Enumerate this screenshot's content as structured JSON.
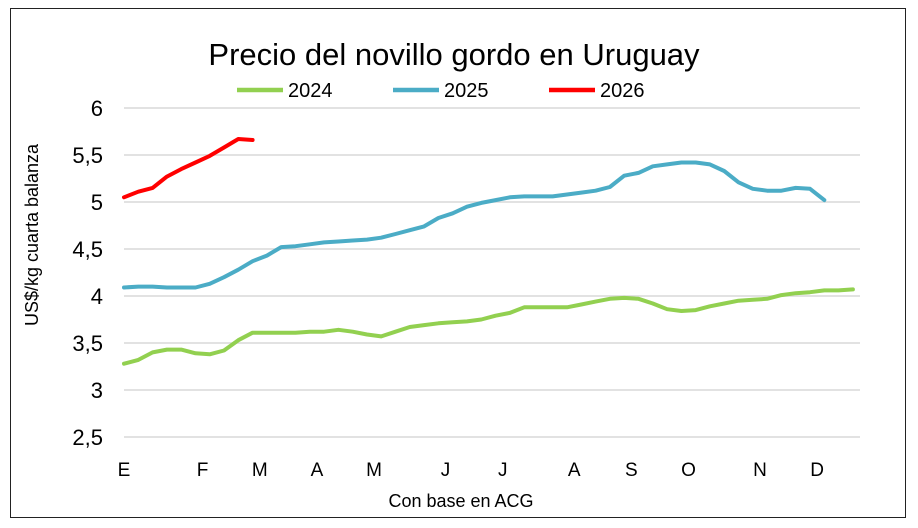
{
  "chart_data": {
    "type": "line",
    "title": "Precio del novillo gordo en Uruguay",
    "ylabel": "US$/kg cuarta balanza",
    "xlabel": "Con base en ACG",
    "ylim": [
      2.5,
      6
    ],
    "yticks": [
      "6",
      "5,5",
      "5",
      "4,5",
      "4",
      "3,5",
      "3",
      "2,5"
    ],
    "ytick_values": [
      6,
      5.5,
      5,
      4.5,
      4,
      3.5,
      3,
      2.5
    ],
    "xlim": [
      1,
      52.5
    ],
    "x_tick_labels": [
      "E",
      "F",
      "M",
      "A",
      "M",
      "J",
      "J",
      "A",
      "S",
      "O",
      "N",
      "D"
    ],
    "x_tick_weeks": [
      1,
      6.5,
      10.5,
      14.5,
      18.5,
      23.5,
      27.5,
      32.5,
      36.5,
      40.5,
      45.5,
      49.5
    ],
    "grid": true,
    "legend_position": "top",
    "series": [
      {
        "name": "2024",
        "color": "#92D050",
        "x": [
          1,
          2,
          3,
          4,
          5,
          6,
          7,
          8,
          9,
          10,
          11,
          12,
          13,
          14,
          15,
          16,
          17,
          18,
          19,
          20,
          21,
          22,
          23,
          24,
          25,
          26,
          27,
          28,
          29,
          30,
          31,
          32,
          33,
          34,
          35,
          36,
          37,
          38,
          39,
          40,
          41,
          42,
          43,
          44,
          45,
          46,
          47,
          48,
          49,
          50,
          51,
          52
        ],
        "values": [
          3.28,
          3.32,
          3.4,
          3.43,
          3.43,
          3.39,
          3.38,
          3.42,
          3.53,
          3.61,
          3.61,
          3.61,
          3.61,
          3.62,
          3.62,
          3.64,
          3.62,
          3.59,
          3.57,
          3.62,
          3.67,
          3.69,
          3.71,
          3.72,
          3.73,
          3.75,
          3.79,
          3.82,
          3.88,
          3.88,
          3.88,
          3.88,
          3.91,
          3.94,
          3.97,
          3.98,
          3.97,
          3.92,
          3.86,
          3.84,
          3.85,
          3.89,
          3.92,
          3.95,
          3.96,
          3.97,
          4.01,
          4.03,
          4.04,
          4.06,
          4.06,
          4.07
        ]
      },
      {
        "name": "2025",
        "color": "#4BACC6",
        "x": [
          1,
          2,
          3,
          4,
          5,
          6,
          7,
          8,
          9,
          10,
          11,
          12,
          13,
          14,
          15,
          16,
          17,
          18,
          19,
          20,
          21,
          22,
          23,
          24,
          25,
          26,
          27,
          28,
          29,
          30,
          31,
          32,
          33,
          34,
          35,
          36,
          37,
          38,
          39,
          40,
          41,
          42,
          43,
          44,
          45,
          46,
          47,
          48,
          49,
          50
        ],
        "values": [
          4.09,
          4.1,
          4.1,
          4.09,
          4.09,
          4.09,
          4.13,
          4.2,
          4.28,
          4.37,
          4.43,
          4.52,
          4.53,
          4.55,
          4.57,
          4.58,
          4.59,
          4.6,
          4.62,
          4.66,
          4.7,
          4.74,
          4.83,
          4.88,
          4.95,
          4.99,
          5.02,
          5.05,
          5.06,
          5.06,
          5.06,
          5.08,
          5.1,
          5.12,
          5.16,
          5.28,
          5.31,
          5.38,
          5.4,
          5.42,
          5.42,
          5.4,
          5.33,
          5.21,
          5.14,
          5.12,
          5.12,
          5.15,
          5.14,
          5.02
        ]
      },
      {
        "name": "2026",
        "color": "#FF0000",
        "x": [
          1,
          2,
          3,
          4,
          5,
          6,
          7,
          8,
          9,
          10
        ],
        "values": [
          5.05,
          5.11,
          5.15,
          5.27,
          5.35,
          5.42,
          5.49,
          5.58,
          5.67,
          5.66
        ]
      }
    ]
  }
}
